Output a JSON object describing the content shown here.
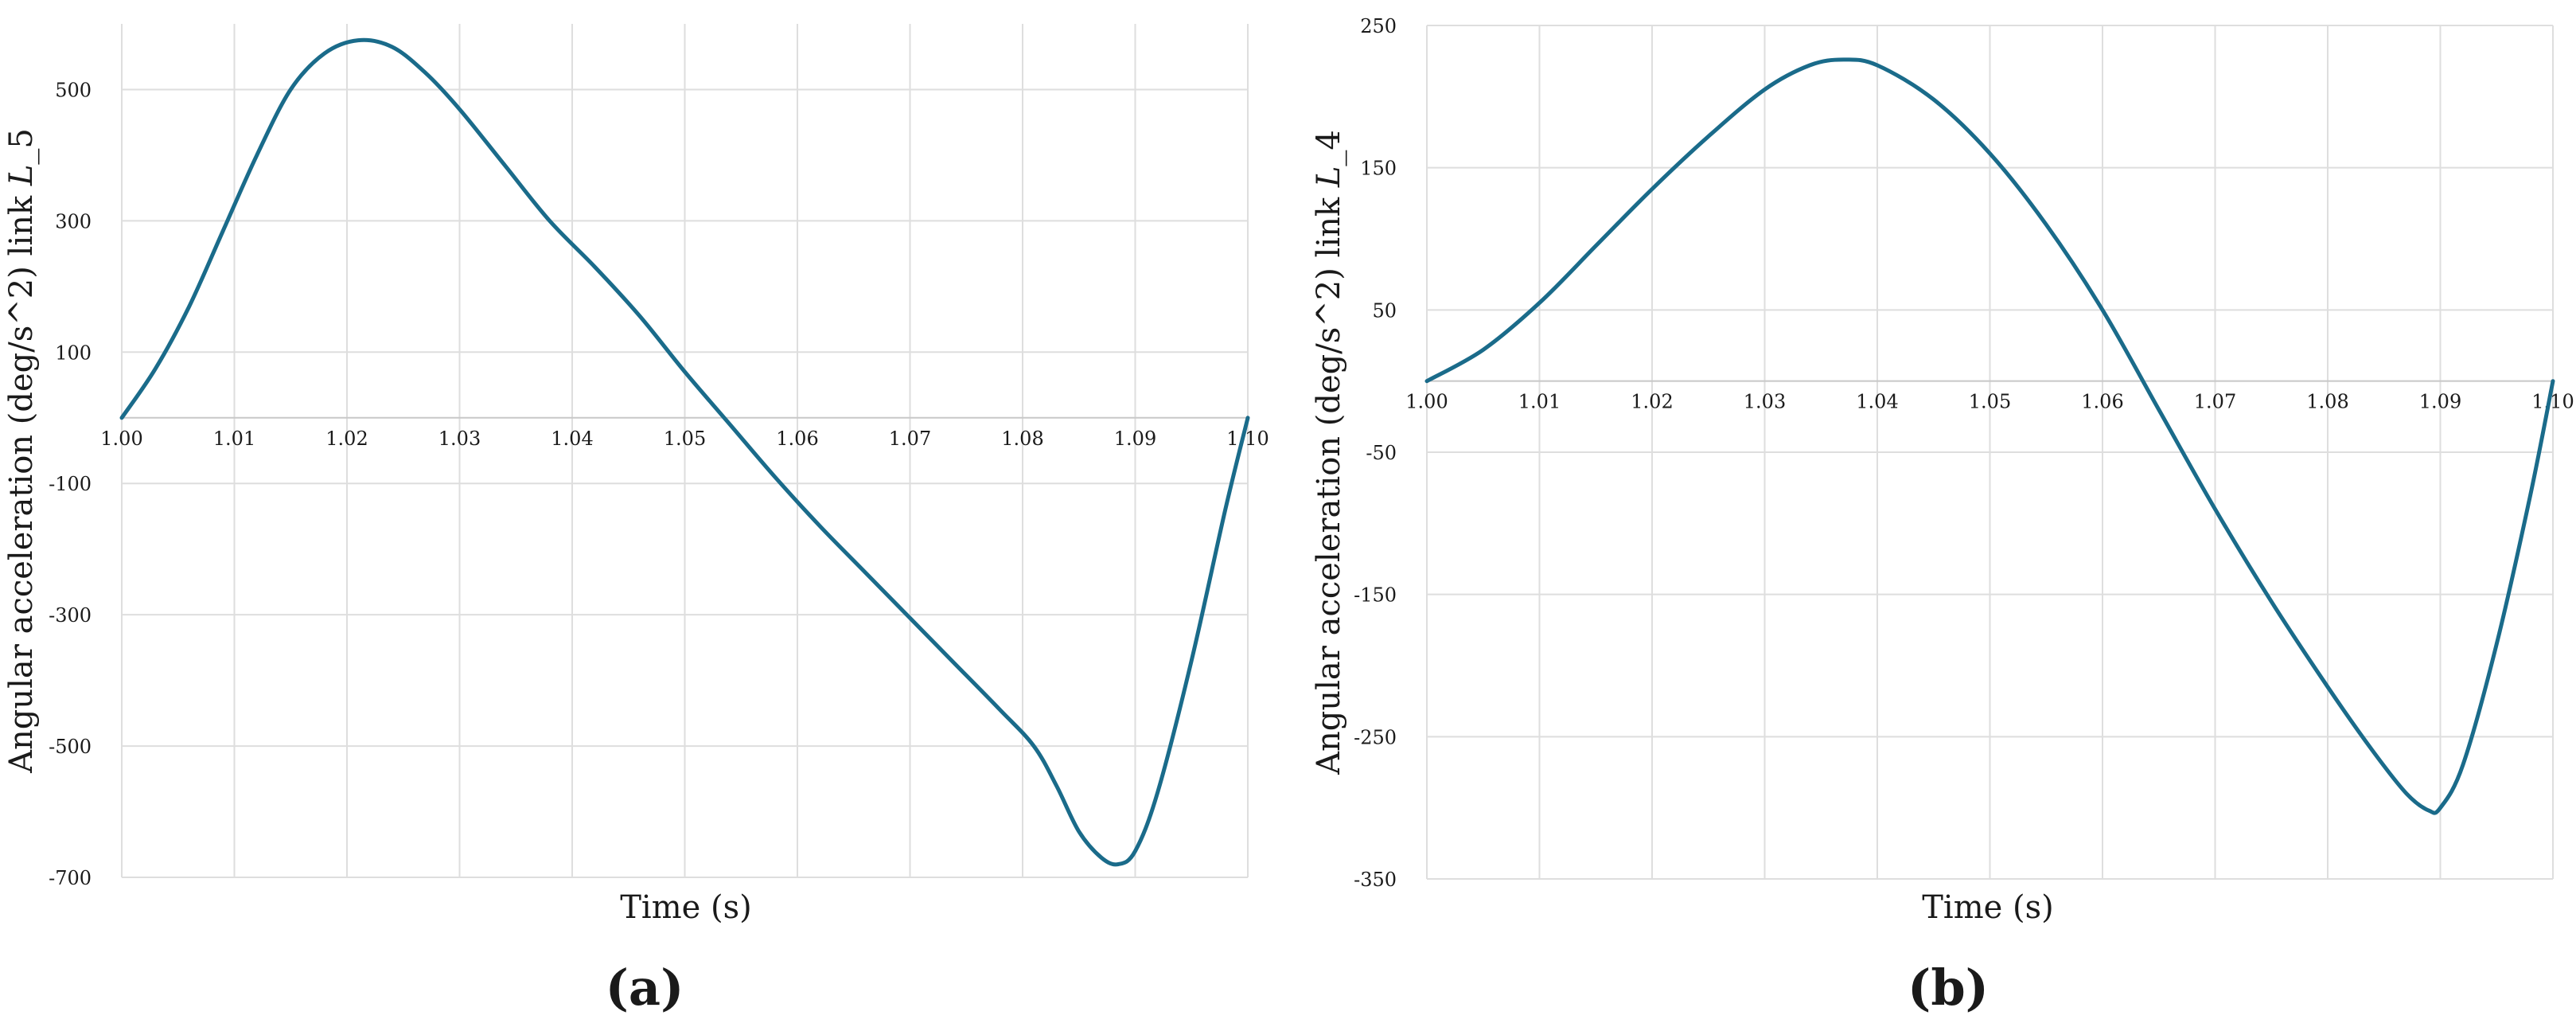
{
  "chart_data": [
    {
      "type": "line",
      "panel_label": "(a)",
      "xlabel": "Time (s)",
      "ylabel_prefix": "Angular acceleration (deg/s^2) link ",
      "ylabel_italic": "L",
      "ylabel_suffix": "_5",
      "xlim": [
        1.0,
        1.1
      ],
      "ylim": [
        -700,
        600
      ],
      "grid": true,
      "line_color": "#1a6b8a",
      "x_ticks": [
        "1.00",
        "1.01",
        "1.02",
        "1.03",
        "1.04",
        "1.05",
        "1.06",
        "1.07",
        "1.08",
        "1.09",
        "1.10"
      ],
      "y_ticks": [
        "500",
        "300",
        "100",
        "-100",
        "-300",
        "-500",
        "-700"
      ],
      "series": [
        {
          "x": [
            1.0,
            1.003,
            1.006,
            1.009,
            1.012,
            1.015,
            1.018,
            1.021,
            1.024,
            1.027,
            1.03,
            1.034,
            1.038,
            1.042,
            1.046,
            1.05,
            1.054,
            1.058,
            1.062,
            1.066,
            1.07,
            1.074,
            1.078,
            1.081,
            1.083,
            1.085,
            1.087,
            1.0885,
            1.09,
            1.092,
            1.095,
            1.098,
            1.1
          ],
          "y": [
            0,
            75,
            170,
            285,
            400,
            500,
            555,
            575,
            565,
            525,
            470,
            385,
            300,
            230,
            155,
            70,
            -10,
            -90,
            -165,
            -235,
            -305,
            -375,
            -445,
            -500,
            -560,
            -630,
            -670,
            -680,
            -660,
            -570,
            -370,
            -140,
            0
          ]
        }
      ]
    },
    {
      "type": "line",
      "panel_label": "(b)",
      "xlabel": "Time (s)",
      "ylabel_prefix": "Angular acceleration (deg/s^2) link ",
      "ylabel_italic": "L",
      "ylabel_suffix": "_4",
      "xlim": [
        1.0,
        1.1
      ],
      "ylim": [
        -350,
        250
      ],
      "grid": true,
      "line_color": "#1a6b8a",
      "x_ticks": [
        "1.00",
        "1.01",
        "1.02",
        "1.03",
        "1.04",
        "1.05",
        "1.06",
        "1.07",
        "1.08",
        "1.09",
        "1.10"
      ],
      "y_ticks": [
        "250",
        "150",
        "50",
        "-50",
        "-150",
        "-250",
        "-350"
      ],
      "series": [
        {
          "x": [
            1.0,
            1.005,
            1.01,
            1.015,
            1.02,
            1.025,
            1.03,
            1.034,
            1.037,
            1.04,
            1.045,
            1.05,
            1.055,
            1.06,
            1.065,
            1.07,
            1.075,
            1.08,
            1.084,
            1.087,
            1.089,
            1.09,
            1.092,
            1.095,
            1.098,
            1.1
          ],
          "y": [
            0,
            22,
            55,
            95,
            135,
            172,
            205,
            222,
            226,
            222,
            198,
            160,
            110,
            50,
            -20,
            -90,
            -155,
            -215,
            -260,
            -290,
            -302,
            -300,
            -270,
            -185,
            -80,
            0
          ]
        }
      ]
    }
  ]
}
